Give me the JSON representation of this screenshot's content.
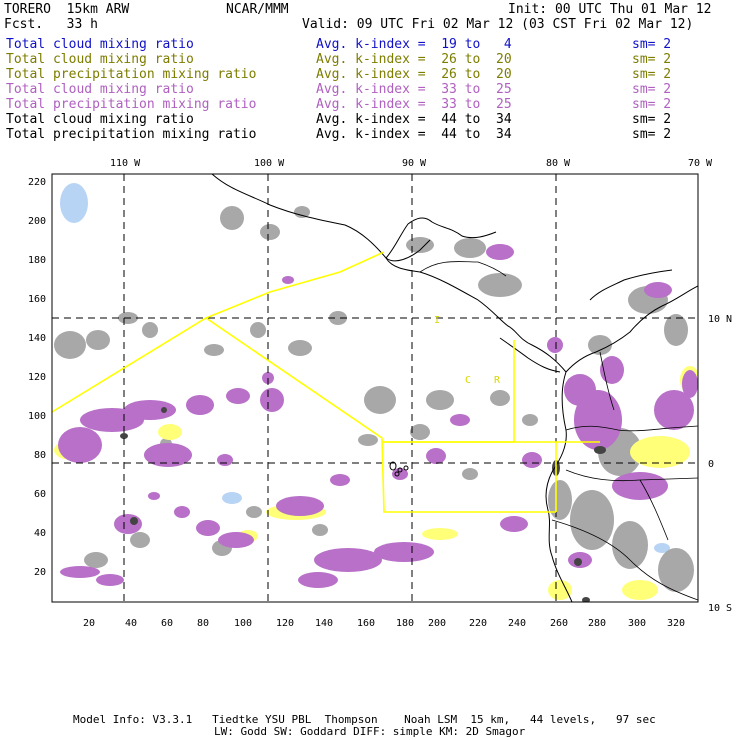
{
  "header": {
    "model": "TORERO  15km ARW",
    "org": "NCAR/MMM",
    "init": "Init: 00 UTC Thu 01 Mar 12",
    "fcst": "Fcst.   33 h",
    "valid": "Valid: 09 UTC Fri 02 Mar 12 (03 CST Fri 02 Mar 12)"
  },
  "legend": [
    {
      "field": "Total cloud mixing ratio",
      "index": "Avg. k-index =  19 to   4",
      "sm": "sm= 2",
      "color": "#1010c8"
    },
    {
      "field": "Total cloud mixing ratio",
      "index": "Avg. k-index =  26 to  20",
      "sm": "sm= 2",
      "color": "#7d7d00"
    },
    {
      "field": "Total precipitation mixing ratio",
      "index": "Avg. k-index =  26 to  20",
      "sm": "sm= 2",
      "color": "#7d7d00"
    },
    {
      "field": "Total cloud mixing ratio",
      "index": "Avg. k-index =  33 to  25",
      "sm": "sm= 2",
      "color": "#b060c0"
    },
    {
      "field": "Total precipitation mixing ratio",
      "index": "Avg. k-index =  33 to  25",
      "sm": "sm= 2",
      "color": "#b060c0"
    },
    {
      "field": "Total cloud mixing ratio",
      "index": "Avg. k-index =  44 to  34",
      "sm": "sm= 2",
      "color": "#000000"
    },
    {
      "field": "Total precipitation mixing ratio",
      "index": "Avg. k-index =  44 to  34",
      "sm": "sm= 2",
      "color": "#000000"
    }
  ],
  "map": {
    "top_lon_labels": [
      "110 W",
      "100 W",
      "90 W",
      "80 W",
      "70 W"
    ],
    "right_lat_labels": [
      "10 N",
      "0",
      "10 S"
    ],
    "x_ticks": [
      "20",
      "40",
      "60",
      "80",
      "100",
      "120",
      "140",
      "160",
      "180",
      "200",
      "220",
      "240",
      "260",
      "280",
      "300",
      "320"
    ],
    "y_ticks": [
      "220",
      "200",
      "180",
      "160",
      "140",
      "120",
      "100",
      "80",
      "60",
      "40",
      "20"
    ],
    "country_labels": [
      "I",
      "C",
      "R"
    ]
  },
  "footer": {
    "line1": "Model Info: V3.3.1   Tiedtke YSU PBL  Thompson    Noah LSM  15 km,   44 levels,   97 sec",
    "line2": "LW: Godd SW: Goddard DIFF: simple KM: 2D Smagor"
  }
}
